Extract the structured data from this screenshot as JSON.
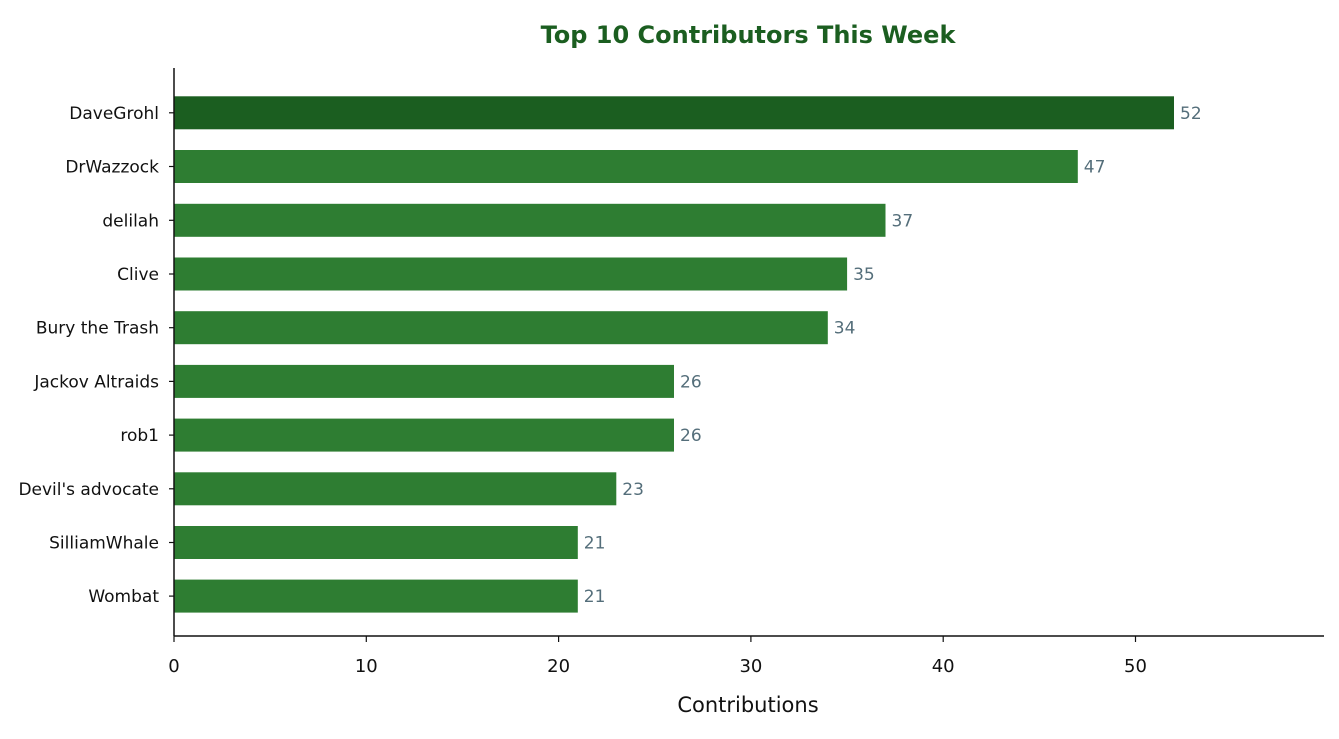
{
  "chart_data": {
    "type": "bar",
    "orientation": "horizontal",
    "title": "Top 10 Contributors This Week",
    "xlabel": "Contributions",
    "ylabel": "",
    "categories": [
      "DaveGrohl",
      "DrWazzock",
      "delilah",
      "Clive",
      "Bury the Trash",
      "Jackov Altraids",
      "rob1",
      "Devil's advocate",
      "SilliamWhale",
      "Wombat"
    ],
    "values": [
      52,
      47,
      37,
      35,
      34,
      26,
      26,
      23,
      21,
      21
    ],
    "xlim": [
      0,
      59.8
    ],
    "xticks": [
      0,
      10,
      20,
      30,
      40,
      50
    ],
    "grid": false,
    "data_labels": true,
    "highlight_index": 0,
    "colors": {
      "highlight_bar": "#1b5e20",
      "bar": "#2e7d32",
      "title": "#1b5e20",
      "value_label": "#546e7a",
      "axis": "#111111"
    }
  }
}
